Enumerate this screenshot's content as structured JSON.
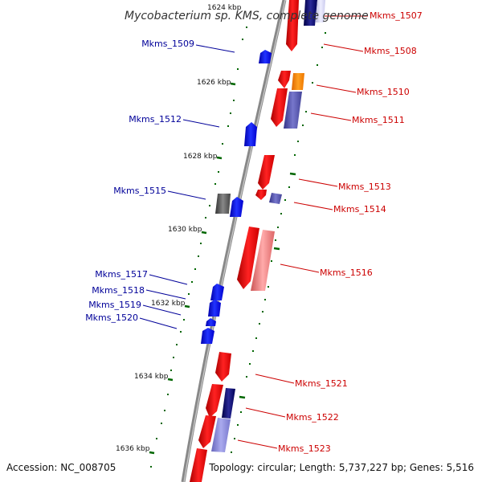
{
  "title": "Mycobacterium sp. KMS, complete genome",
  "footer": {
    "accession": "Accession: NC_008705",
    "stats": "Topology: circular; Length: 5,737,227 bp; Genes: 5,516"
  },
  "colors": {
    "forward_label": "#cc0000",
    "reverse_label": "#000099",
    "backbone": "#888888",
    "tick": "#006600",
    "gene_red": "#ff0000",
    "gene_blue": "#0000ff",
    "gene_orange": "#ff8800",
    "gene_slate": "#5555aa",
    "gene_gray": "#555555",
    "gene_pink": "#ee7777",
    "gene_navy": "#000066"
  },
  "scale_labels": [
    "1624 kbp",
    "1626 kbp",
    "1628 kbp",
    "1630 kbp",
    "1632 kbp",
    "1634 kbp",
    "1636 kbp"
  ],
  "forward_labels": [
    "Mkms_1507",
    "Mkms_1508",
    "Mkms_1510",
    "Mkms_1511",
    "Mkms_1513",
    "Mkms_1514",
    "Mkms_1516",
    "Mkms_1521",
    "Mkms_1522",
    "Mkms_1523"
  ],
  "reverse_labels": [
    "Mkms_1509",
    "Mkms_1512",
    "Mkms_1515",
    "Mkms_1517",
    "Mkms_1518",
    "Mkms_1519",
    "Mkms_1520"
  ]
}
